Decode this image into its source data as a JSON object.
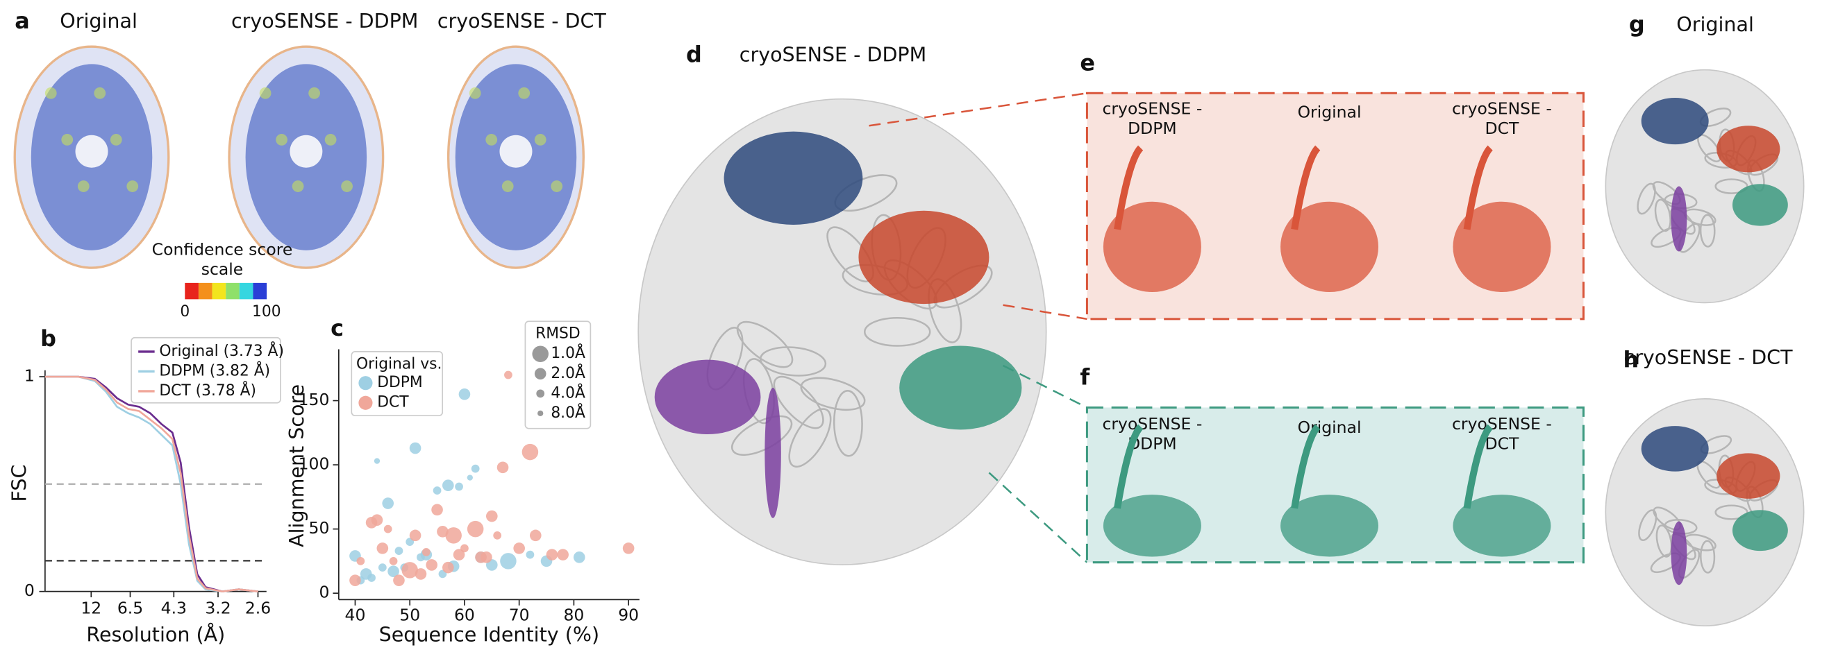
{
  "panels": {
    "a": {
      "letter": "a",
      "titles": [
        "Original",
        "cryoSENSE - DDPM",
        "cryoSENSE - DCT"
      ],
      "colorbar": {
        "title": [
          "Confidence score",
          "scale"
        ],
        "min": 0,
        "max": 100,
        "colors": [
          "#e8231c",
          "#f4901c",
          "#f2e51e",
          "#8fe06a",
          "#35d6e0",
          "#2a3fd6"
        ]
      }
    },
    "b": {
      "letter": "b"
    },
    "c": {
      "letter": "c"
    },
    "d": {
      "letter": "d",
      "title": "cryoSENSE - DDPM"
    },
    "e": {
      "letter": "e",
      "labels": [
        [
          "cryoSENSE -",
          "DDPM"
        ],
        [
          "Original"
        ],
        [
          "cryoSENSE -",
          "DCT"
        ]
      ],
      "color": "#d9553a",
      "fill": "#f9e3dd"
    },
    "f": {
      "letter": "f",
      "labels": [
        [
          "cryoSENSE -",
          "DDPM"
        ],
        [
          "Original"
        ],
        [
          "cryoSENSE -",
          "DCT"
        ]
      ],
      "color": "#3d9a80",
      "fill": "#d8ecea"
    },
    "g": {
      "letter": "g",
      "title": "Original"
    },
    "h": {
      "letter": "h",
      "title": "cryoSENSE - DCT"
    }
  },
  "chart_data": [
    {
      "type": "line",
      "xlabel": "Resolution (Å)",
      "ylabel": "FSC",
      "x": [
        0,
        0.03,
        0.06,
        0.09,
        0.11,
        0.13,
        0.15,
        0.17,
        0.19,
        0.21,
        0.23,
        0.245,
        0.26,
        0.275,
        0.29,
        0.32,
        0.35,
        0.385
      ],
      "series": [
        {
          "name": "Original (3.73 Å)",
          "color": "#6a2c8e",
          "values": [
            1,
            1,
            1,
            0.99,
            0.95,
            0.9,
            0.87,
            0.86,
            0.83,
            0.78,
            0.74,
            0.6,
            0.3,
            0.08,
            0.02,
            0,
            0.01,
            0
          ]
        },
        {
          "name": "DDPM (3.82 Å)",
          "color": "#9ecfe3",
          "values": [
            1,
            1,
            1,
            0.98,
            0.93,
            0.86,
            0.83,
            0.81,
            0.78,
            0.73,
            0.68,
            0.5,
            0.22,
            0.05,
            0.01,
            0,
            0.01,
            0
          ]
        },
        {
          "name": "DCT (3.78 Å)",
          "color": "#f0a79a",
          "values": [
            1,
            1,
            1,
            0.985,
            0.94,
            0.88,
            0.85,
            0.84,
            0.8,
            0.76,
            0.71,
            0.55,
            0.26,
            0.06,
            0.015,
            0,
            0.01,
            0
          ]
        }
      ],
      "xlim": [
        0,
        0.4
      ],
      "ylim": [
        0,
        1.03
      ],
      "xticks": [
        {
          "value": 0.0833,
          "label": "12"
        },
        {
          "value": 0.1538,
          "label": "6.5"
        },
        {
          "value": 0.2326,
          "label": "4.3"
        },
        {
          "value": 0.3125,
          "label": "3.2"
        },
        {
          "value": 0.3846,
          "label": "2.6"
        }
      ],
      "yticks": [
        0,
        1
      ],
      "reference_lines": [
        {
          "value": 0.5,
          "color": "#aaaaaa"
        },
        {
          "value": 0.143,
          "color": "#333333"
        }
      ],
      "legend": "upper right"
    },
    {
      "type": "scatter",
      "xlabel": "Sequence Identity (%)",
      "ylabel": "Alignment Score",
      "legend_title": "Original vs.",
      "series": [
        {
          "name": "DDPM",
          "color": "#9ecfe3",
          "x": [
            40,
            41,
            42,
            43,
            44,
            45,
            46,
            47,
            48,
            49,
            50,
            51,
            52,
            53,
            55,
            56,
            57,
            58,
            59,
            60,
            61,
            62,
            63,
            65,
            68,
            72,
            75,
            81
          ],
          "values": [
            29,
            10,
            15,
            12,
            103,
            20,
            70,
            17,
            33,
            20,
            40,
            113,
            28,
            30,
            80,
            15,
            84,
            21,
            83,
            155,
            90,
            97,
            28,
            22,
            25,
            30,
            25,
            28
          ],
          "rmsd": [
            2,
            4,
            2,
            4,
            8,
            4,
            2,
            2,
            4,
            4,
            4,
            2,
            4,
            2,
            4,
            4,
            2,
            2,
            4,
            2,
            8,
            4,
            2,
            2,
            1,
            4,
            2,
            2
          ]
        },
        {
          "name": "DCT",
          "color": "#f0a79a",
          "x": [
            40,
            41,
            43,
            44,
            45,
            46,
            47,
            48,
            50,
            51,
            52,
            53,
            54,
            55,
            56,
            57,
            58,
            59,
            60,
            62,
            63,
            64,
            65,
            66,
            67,
            68,
            70,
            72,
            73,
            76,
            78,
            90
          ],
          "values": [
            10,
            25,
            55,
            57,
            35,
            50,
            25,
            10,
            18,
            45,
            15,
            32,
            22,
            65,
            48,
            20,
            45,
            30,
            35,
            50,
            28,
            28,
            60,
            45,
            98,
            170,
            35,
            110,
            45,
            30,
            30,
            35
          ],
          "rmsd": [
            2,
            4,
            2,
            2,
            2,
            4,
            4,
            2,
            1,
            2,
            2,
            4,
            2,
            2,
            2,
            2,
            1,
            2,
            4,
            1,
            2,
            2,
            2,
            4,
            2,
            4,
            2,
            1,
            2,
            2,
            2,
            2
          ]
        }
      ],
      "xlim": [
        37,
        92
      ],
      "ylim": [
        -5,
        190
      ],
      "xticks": [
        40,
        50,
        60,
        70,
        80,
        90
      ],
      "yticks": [
        0,
        50,
        100,
        150
      ],
      "size_legend": {
        "title": "RMSD",
        "ticks": [
          {
            "value": 1,
            "label": "1.0Å"
          },
          {
            "value": 2,
            "label": "2.0Å"
          },
          {
            "value": 4,
            "label": "4.0Å"
          },
          {
            "value": 8,
            "label": "8.0Å"
          }
        ]
      }
    }
  ]
}
